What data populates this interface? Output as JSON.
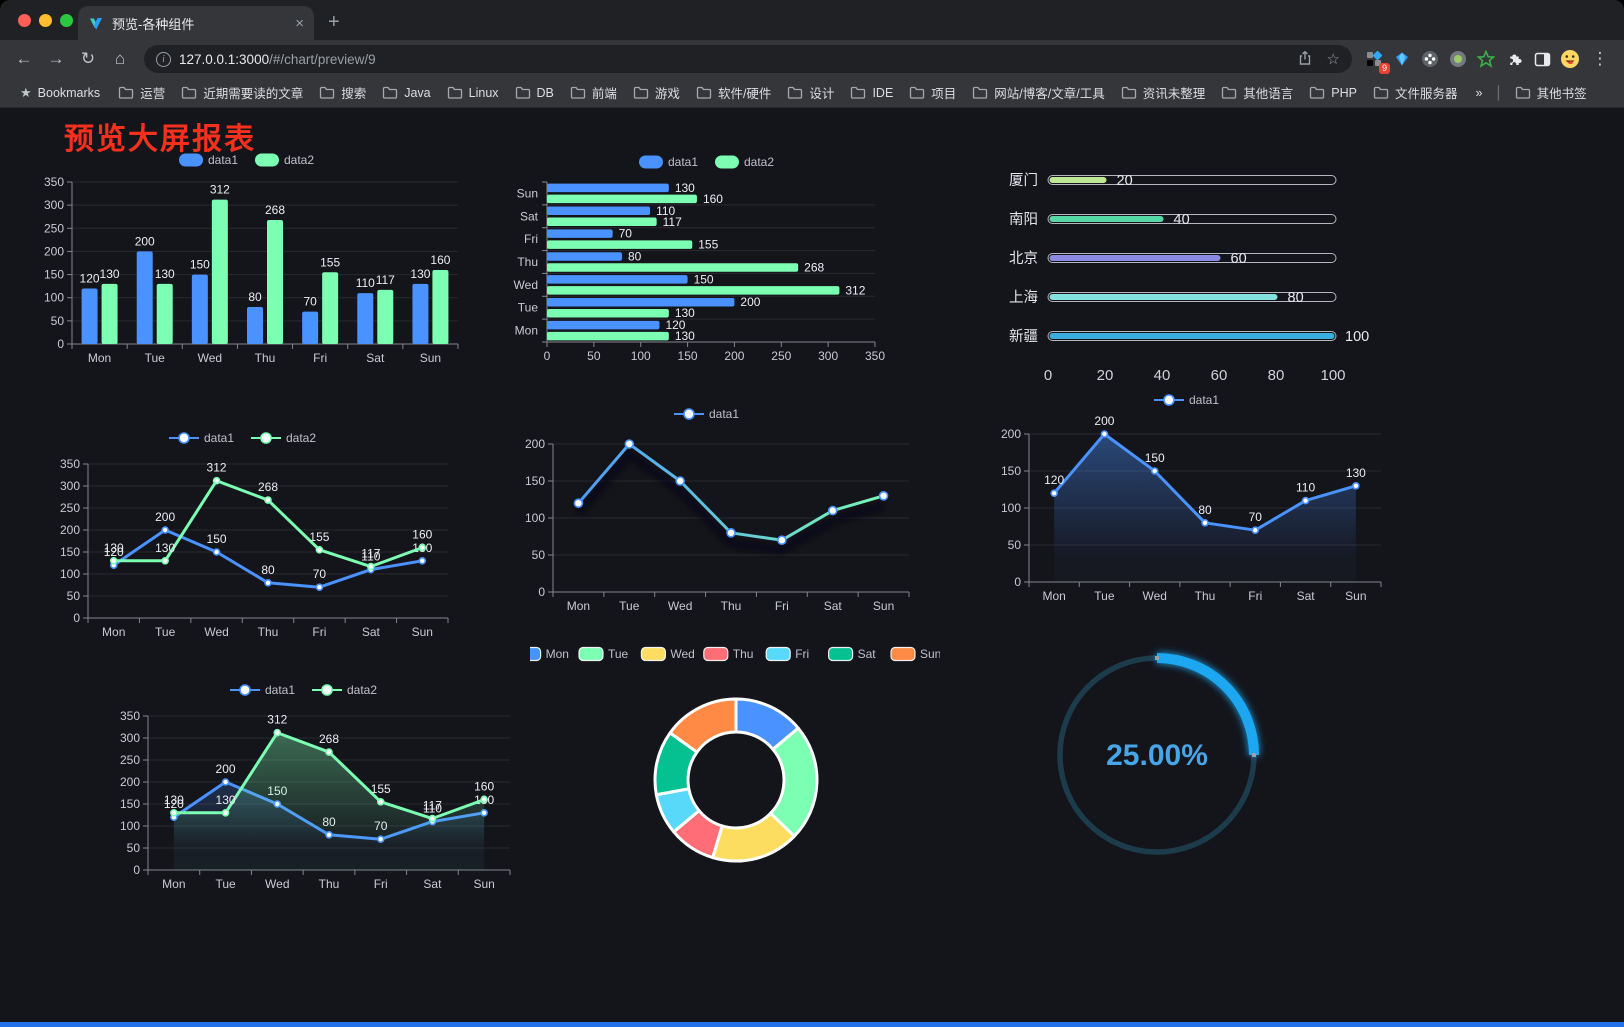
{
  "browser": {
    "traffic_lights": {
      "close": "#ff5f57",
      "minimize": "#febc2e",
      "maximize": "#28c840"
    },
    "tab": {
      "title": "预览-各种组件",
      "close_glyph": "×",
      "new_tab_glyph": "+"
    },
    "nav": {
      "back_glyph": "←",
      "forward_glyph": "→",
      "reload_glyph": "↻",
      "home_glyph": "⌂"
    },
    "address": {
      "info_glyph": "i",
      "url_host": "127.0.0.1:3000",
      "url_path": "/#/chart/preview/9",
      "share_glyph": "⎋",
      "star_glyph": "☆"
    },
    "actions": {
      "extensions_badge": "9",
      "menu_glyph": "⋮"
    },
    "bookmarks_bar": {
      "star_glyph": "★",
      "label": "Bookmarks",
      "folders": [
        "运营",
        "近期需要读的文章",
        "搜索",
        "Java",
        "Linux",
        "DB",
        "前端",
        "游戏",
        "软件/硬件",
        "设计",
        "IDE",
        "项目",
        "网站/博客/文章/工具",
        "资讯未整理",
        "其他语言",
        "PHP",
        "文件服务器"
      ],
      "overflow_glyph": "»",
      "other_bookmarks": "其他书签"
    }
  },
  "page": {
    "title": "预览大屏报表",
    "title_color": "#f5301d",
    "background": "#14141b",
    "footer_bar_color": "#2472e8",
    "accent_blue": "#4992ff",
    "accent_green": "#7cffb2"
  },
  "chart_data": [
    {
      "id": "grouped-bar-chart",
      "type": "bar",
      "categories": [
        "Mon",
        "Tue",
        "Wed",
        "Thu",
        "Fri",
        "Sat",
        "Sun"
      ],
      "series": [
        {
          "name": "data1",
          "color": "#4992ff",
          "values": [
            120,
            200,
            150,
            80,
            70,
            110,
            130
          ]
        },
        {
          "name": "data2",
          "color": "#7cffb2",
          "values": [
            130,
            130,
            312,
            268,
            155,
            117,
            160
          ]
        }
      ],
      "ylim": [
        0,
        350
      ],
      "yticks": [
        0,
        50,
        100,
        150,
        200,
        250,
        300,
        350
      ],
      "legend_position": "top",
      "grid": true,
      "value_labels": true
    },
    {
      "id": "horizontal-bar-chart",
      "type": "bar-horizontal",
      "categories": [
        "Mon",
        "Tue",
        "Wed",
        "Thu",
        "Fri",
        "Sat",
        "Sun"
      ],
      "series": [
        {
          "name": "data1",
          "color": "#4992ff",
          "values": [
            120,
            200,
            150,
            80,
            70,
            110,
            130
          ]
        },
        {
          "name": "data2",
          "color": "#7cffb2",
          "values": [
            130,
            130,
            312,
            268,
            155,
            117,
            160
          ]
        }
      ],
      "xlim": [
        0,
        350
      ],
      "xticks": [
        0,
        50,
        100,
        150,
        200,
        250,
        300,
        350
      ],
      "legend_position": "top",
      "value_labels": true
    },
    {
      "id": "city-progress-chart",
      "type": "bar-horizontal-progress",
      "items": [
        {
          "label": "厦门",
          "value": 20,
          "color": "#c0e796"
        },
        {
          "label": "南阳",
          "value": 40,
          "color": "#57d7a4"
        },
        {
          "label": "北京",
          "value": 60,
          "color": "#8b89e2"
        },
        {
          "label": "上海",
          "value": 80,
          "color": "#83e1de"
        },
        {
          "label": "新疆",
          "value": 100,
          "color": "#3badde"
        }
      ],
      "xlim": [
        0,
        100
      ],
      "xticks": [
        0,
        20,
        40,
        60,
        80,
        100
      ]
    },
    {
      "id": "multi-line-chart",
      "type": "line",
      "categories": [
        "Mon",
        "Tue",
        "Wed",
        "Thu",
        "Fri",
        "Sat",
        "Sun"
      ],
      "series": [
        {
          "name": "data1",
          "color": "#4992ff",
          "values": [
            120,
            200,
            150,
            80,
            70,
            110,
            130
          ]
        },
        {
          "name": "data2",
          "color": "#7cffb2",
          "values": [
            130,
            130,
            312,
            268,
            155,
            117,
            160
          ]
        }
      ],
      "ylim": [
        0,
        350
      ],
      "yticks": [
        0,
        50,
        100,
        150,
        200,
        250,
        300,
        350
      ],
      "value_labels": true
    },
    {
      "id": "gradient-line-chart",
      "type": "line",
      "categories": [
        "Mon",
        "Tue",
        "Wed",
        "Thu",
        "Fri",
        "Sat",
        "Sun"
      ],
      "series": [
        {
          "name": "data1",
          "color": "#4992ff",
          "gradient": [
            "#4992ff",
            "#7cffb2"
          ],
          "shadow": true,
          "values": [
            120,
            200,
            150,
            80,
            70,
            110,
            130
          ]
        }
      ],
      "ylim": [
        0,
        200
      ],
      "yticks": [
        0,
        50,
        100,
        150,
        200
      ],
      "value_labels": false
    },
    {
      "id": "area-line-chart",
      "type": "line",
      "categories": [
        "Mon",
        "Tue",
        "Wed",
        "Thu",
        "Fri",
        "Sat",
        "Sun"
      ],
      "series": [
        {
          "name": "data1",
          "color": "#4992ff",
          "area": true,
          "values": [
            120,
            200,
            150,
            80,
            70,
            110,
            130
          ]
        }
      ],
      "ylim": [
        0,
        200
      ],
      "yticks": [
        0,
        50,
        100,
        150,
        200
      ],
      "value_labels": true
    },
    {
      "id": "dual-area-line-chart",
      "type": "line",
      "categories": [
        "Mon",
        "Tue",
        "Wed",
        "Thu",
        "Fri",
        "Sat",
        "Sun"
      ],
      "series": [
        {
          "name": "data1",
          "color": "#4992ff",
          "area": true,
          "values": [
            120,
            200,
            150,
            80,
            70,
            110,
            130
          ]
        },
        {
          "name": "data2",
          "color": "#7cffb2",
          "area": true,
          "values": [
            130,
            130,
            312,
            268,
            155,
            117,
            160
          ]
        }
      ],
      "ylim": [
        0,
        350
      ],
      "yticks": [
        0,
        50,
        100,
        150,
        200,
        250,
        300,
        350
      ],
      "value_labels": true
    },
    {
      "id": "donut-chart",
      "type": "pie",
      "items": [
        {
          "label": "Mon",
          "value": 120,
          "color": "#4992ff"
        },
        {
          "label": "Tue",
          "value": 200,
          "color": "#7cffb2"
        },
        {
          "label": "Wed",
          "value": 150,
          "color": "#fddd60"
        },
        {
          "label": "Thu",
          "value": 80,
          "color": "#ff6e76"
        },
        {
          "label": "Fri",
          "value": 70,
          "color": "#58d9f9"
        },
        {
          "label": "Sat",
          "value": 110,
          "color": "#05c091"
        },
        {
          "label": "Sun",
          "value": 130,
          "color": "#ff8a45"
        }
      ],
      "border_color": "#ffffff",
      "inner_radius_ratio": 0.58
    },
    {
      "id": "gauge-chart",
      "type": "gauge",
      "value": 25,
      "label": "25.00%",
      "progress_color": "#1aa7f0",
      "track_color": "#1d3c4b",
      "text_color": "#46a6e8"
    }
  ]
}
